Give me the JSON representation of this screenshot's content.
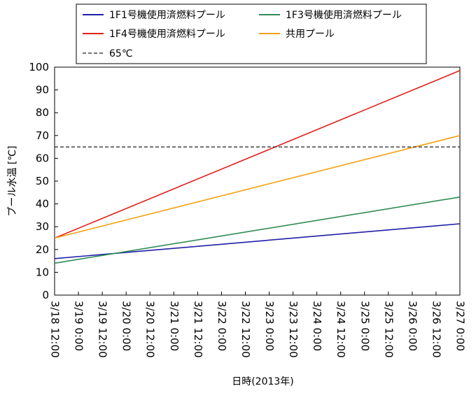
{
  "chart_data": {
    "type": "line",
    "xlabel": "日時(2013年)",
    "ylabel": "プール水温 [℃]",
    "ylim": [
      0,
      100
    ],
    "yticks": [
      0,
      10,
      20,
      30,
      40,
      50,
      60,
      70,
      80,
      90,
      100
    ],
    "xlim": [
      "3/18 12:00",
      "3/27 0:00"
    ],
    "xticks": [
      "3/18 12:00",
      "3/19 0:00",
      "3/19 12:00",
      "3/20 0:00",
      "3/20 12:00",
      "3/21 0:00",
      "3/21 12:00",
      "3/22 0:00",
      "3/22 12:00",
      "3/23 0:00",
      "3/23 12:00",
      "3/24 0:00",
      "3/24 12:00",
      "3/25 0:00",
      "3/25 12:00",
      "3/26 0:00",
      "3/26 12:00",
      "3/27 0:00"
    ],
    "legend_position": "top",
    "series": [
      {
        "name": "1F1号機使用済燃料プール",
        "color": "#1f1fa8",
        "dash": "solid",
        "x": [
          "3/18 12:00",
          "3/27 0:00"
        ],
        "values": [
          16.0,
          31.3
        ]
      },
      {
        "name": "1F3号機使用済燃料プール",
        "color": "#2e8b57",
        "dash": "solid",
        "x": [
          "3/18 12:00",
          "3/27 0:00"
        ],
        "values": [
          14.0,
          43.0
        ]
      },
      {
        "name": "1F4号機使用済燃料プール",
        "color": "#e0201b",
        "dash": "solid",
        "x": [
          "3/18 12:00",
          "3/27 0:00"
        ],
        "values": [
          25.0,
          98.5
        ]
      },
      {
        "name": "共用プール",
        "color": "#f2a10f",
        "dash": "solid",
        "x": [
          "3/18 12:00",
          "3/27 0:00"
        ],
        "values": [
          25.0,
          70.0
        ]
      },
      {
        "name": "65℃",
        "color": "#222222",
        "dash": "dashed",
        "x": [
          "3/18 12:00",
          "3/27 0:00"
        ],
        "values": [
          65,
          65
        ]
      }
    ]
  }
}
